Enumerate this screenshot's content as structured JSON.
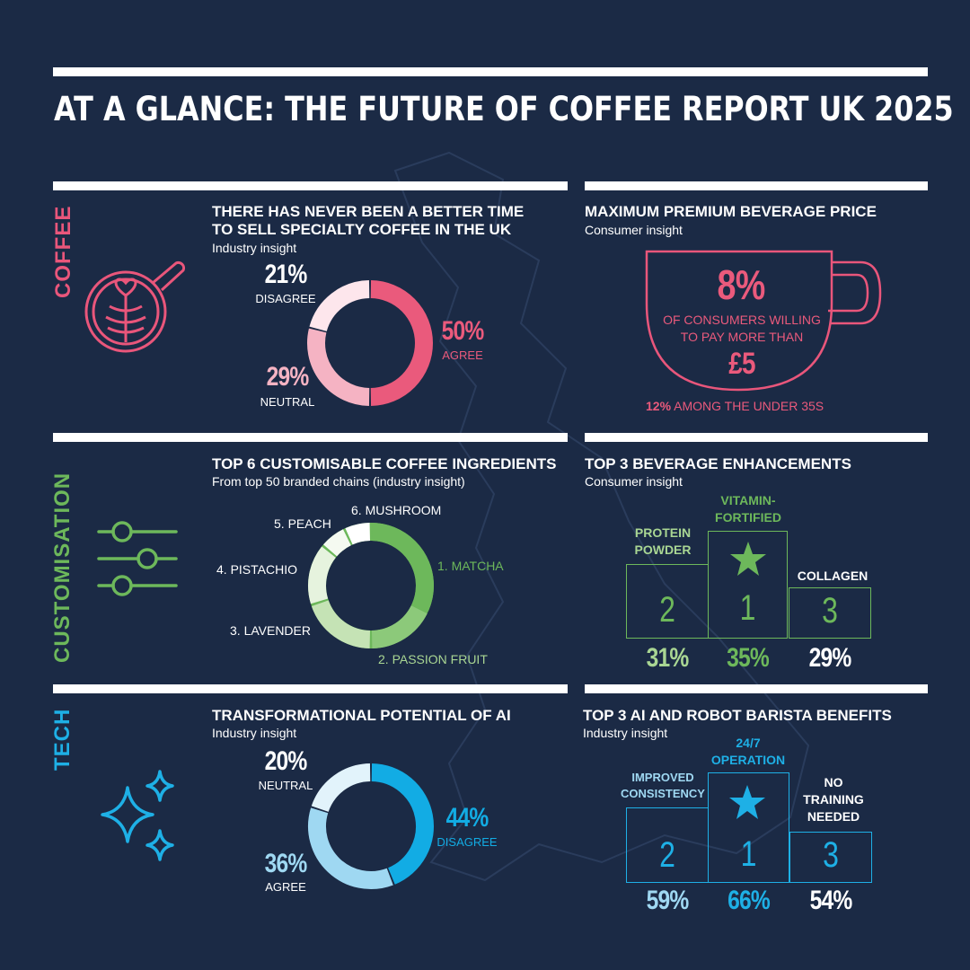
{
  "title": "AT A GLANCE: THE FUTURE OF COFFEE REPORT UK 2025",
  "colors": {
    "background": "#1b2a45",
    "coffee": "#e9567b",
    "customisation": "#6db85b",
    "tech": "#1eb0e6"
  },
  "sections": {
    "coffee": {
      "label": "COFFEE",
      "icon": "latte-art-cup-icon",
      "left": {
        "heading_line1": "THERE HAS NEVER BEEN A BETTER TIME",
        "heading_line2": "TO SELL SPECIALTY COFFEE IN THE UK",
        "subtitle": "Industry insight",
        "slices": [
          {
            "value": "50%",
            "label": "AGREE",
            "fraction": 0.5,
            "color": "#ea5a7c"
          },
          {
            "value": "29%",
            "label": "NEUTRAL",
            "fraction": 0.29,
            "color": "#f5b3c3"
          },
          {
            "value": "21%",
            "label": "DISAGREE",
            "fraction": 0.21,
            "color": "#fde6ec"
          }
        ]
      },
      "right": {
        "heading": "MAXIMUM PREMIUM BEVERAGE PRICE",
        "subtitle": "Consumer insight",
        "big": "8%",
        "text_line1": "OF CONSUMERS WILLING",
        "text_line2": "TO PAY MORE THAN",
        "price": "£5",
        "footnote_value": "12%",
        "footnote_text": " AMONG THE UNDER 35S"
      }
    },
    "customisation": {
      "label": "CUSTOMISATION",
      "icon": "sliders-icon",
      "left": {
        "heading": "TOP 6 CUSTOMISABLE COFFEE INGREDIENTS",
        "subtitle": "From top 50 branded chains (industry insight)",
        "ingredients": [
          "1. MATCHA",
          "2. PASSION FRUIT",
          "3. LAVENDER",
          "4. PISTACHIO",
          "5. PEACH",
          "6. MUSHROOM"
        ]
      },
      "right": {
        "heading": "TOP 3 BEVERAGE ENHANCEMENTS",
        "subtitle": "Consumer insight",
        "first": {
          "label_line1": "VITAMIN-",
          "label_line2": "FORTIFIED",
          "rank": "1",
          "value": "35%"
        },
        "second": {
          "label_line1": "PROTEIN",
          "label_line2": "POWDER",
          "rank": "2",
          "value": "31%"
        },
        "third": {
          "label_line1": "COLLAGEN",
          "rank": "3",
          "value": "29%"
        }
      }
    },
    "tech": {
      "label": "TECH",
      "icon": "sparkles-icon",
      "left": {
        "heading": "TRANSFORMATIONAL POTENTIAL OF AI",
        "subtitle": "Industry insight",
        "slices": [
          {
            "value": "44%",
            "label": "DISAGREE",
            "fraction": 0.44,
            "color": "#12ace4"
          },
          {
            "value": "36%",
            "label": "AGREE",
            "fraction": 0.36,
            "color": "#9fd8f2"
          },
          {
            "value": "20%",
            "label": "NEUTRAL",
            "fraction": 0.2,
            "color": "#e2f3fb"
          }
        ]
      },
      "right": {
        "heading": "TOP 3 AI AND ROBOT BARISTA BENEFITS",
        "subtitle": "Industry insight",
        "first": {
          "label_line1": "24/7",
          "label_line2": "OPERATION",
          "rank": "1",
          "value": "66%"
        },
        "second": {
          "label_line1": "IMPROVED",
          "label_line2": "CONSISTENCY",
          "rank": "2",
          "value": "59%"
        },
        "third": {
          "label_line1": "NO",
          "label_line2": "TRAINING",
          "label_line3": "NEEDED",
          "rank": "3",
          "value": "54%"
        }
      }
    }
  }
}
